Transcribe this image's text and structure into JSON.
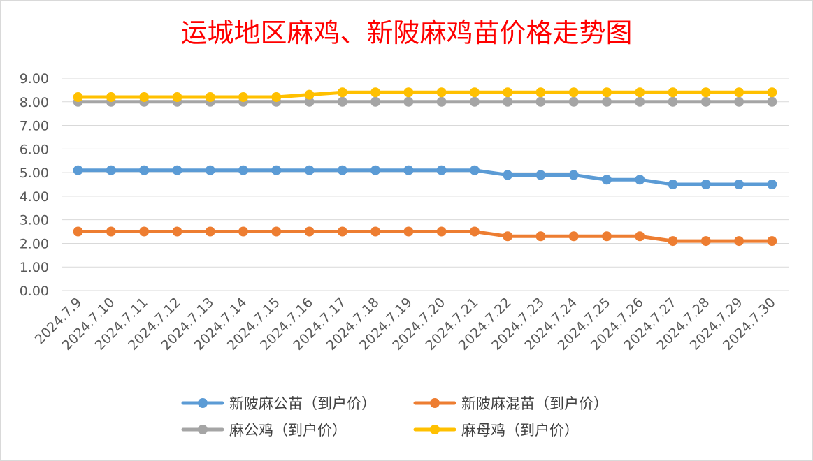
{
  "chart_data": {
    "type": "line",
    "title": "运城地区麻鸡、新陂麻鸡苗价格走势图",
    "xlabel": "",
    "ylabel": "",
    "ylim": [
      0,
      9
    ],
    "y_tick_labels": [
      "0.00",
      "1.00",
      "2.00",
      "3.00",
      "4.00",
      "5.00",
      "6.00",
      "7.00",
      "8.00",
      "9.00"
    ],
    "categories": [
      "2024.7.9",
      "2024.7.10",
      "2024.7.11",
      "2024.7.12",
      "2024.7.13",
      "2024.7.14",
      "2024.7.15",
      "2024.7.16",
      "2024.7.17",
      "2024.7.18",
      "2024.7.19",
      "2024.7.20",
      "2024.7.21",
      "2024.7.22",
      "2024.7.23",
      "2024.7.24",
      "2024.7.25",
      "2024.7.26",
      "2024.7.27",
      "2024.7.28",
      "2024.7.29",
      "2024.7.30"
    ],
    "grid": true,
    "legend_position": "bottom",
    "series": [
      {
        "name": "新陂麻公苗（到户价）",
        "color": "#5b9bd5",
        "values": [
          5.1,
          5.1,
          5.1,
          5.1,
          5.1,
          5.1,
          5.1,
          5.1,
          5.1,
          5.1,
          5.1,
          5.1,
          5.1,
          4.9,
          4.9,
          4.9,
          4.7,
          4.7,
          4.5,
          4.5,
          4.5,
          4.5
        ]
      },
      {
        "name": "新陂麻混苗（到户价）",
        "color": "#ed7d31",
        "values": [
          2.5,
          2.5,
          2.5,
          2.5,
          2.5,
          2.5,
          2.5,
          2.5,
          2.5,
          2.5,
          2.5,
          2.5,
          2.5,
          2.3,
          2.3,
          2.3,
          2.3,
          2.3,
          2.1,
          2.1,
          2.1,
          2.1
        ]
      },
      {
        "name": "麻公鸡（到户价）",
        "color": "#a5a5a5",
        "values": [
          8.0,
          8.0,
          8.0,
          8.0,
          8.0,
          8.0,
          8.0,
          8.0,
          8.0,
          8.0,
          8.0,
          8.0,
          8.0,
          8.0,
          8.0,
          8.0,
          8.0,
          8.0,
          8.0,
          8.0,
          8.0,
          8.0
        ]
      },
      {
        "name": "麻母鸡（到户价）",
        "color": "#ffc000",
        "values": [
          8.2,
          8.2,
          8.2,
          8.2,
          8.2,
          8.2,
          8.2,
          8.3,
          8.4,
          8.4,
          8.4,
          8.4,
          8.4,
          8.4,
          8.4,
          8.4,
          8.4,
          8.4,
          8.4,
          8.4,
          8.4,
          8.4
        ]
      }
    ]
  }
}
